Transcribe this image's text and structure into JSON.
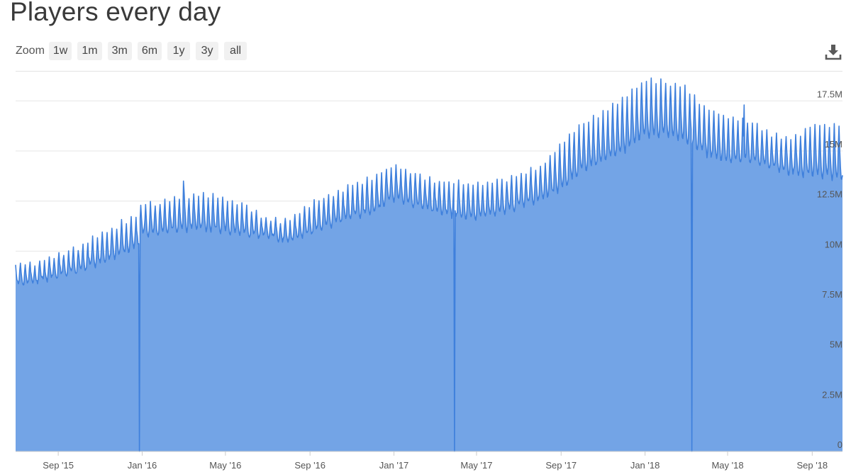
{
  "header": {
    "title": "Players every day"
  },
  "zoom": {
    "label": "Zoom",
    "buttons": [
      "1w",
      "1m",
      "3m",
      "6m",
      "1y",
      "3y",
      "all"
    ]
  },
  "icons": {
    "download": "download-icon"
  },
  "colors": {
    "area": "#73a4e6",
    "line": "#3f80dc",
    "grid": "#e6e6e6"
  },
  "chart_data": {
    "type": "area",
    "title": "Players every day",
    "x_range": [
      "2015-07-01",
      "2018-10-15"
    ],
    "ylim": [
      0,
      19000000
    ],
    "y_ticks": [
      {
        "value": 0,
        "label": "0"
      },
      {
        "value": 2500000,
        "label": "2.5M"
      },
      {
        "value": 5000000,
        "label": "5M"
      },
      {
        "value": 7500000,
        "label": "7.5M"
      },
      {
        "value": 10000000,
        "label": "10M"
      },
      {
        "value": 12500000,
        "label": "12.5M"
      },
      {
        "value": 15000000,
        "label": "15M"
      },
      {
        "value": 17500000,
        "label": "17.5M"
      }
    ],
    "x_ticks": [
      {
        "date": "2015-09-01",
        "label": "Sep '15"
      },
      {
        "date": "2016-01-01",
        "label": "Jan '16"
      },
      {
        "date": "2016-05-01",
        "label": "May '16"
      },
      {
        "date": "2016-09-01",
        "label": "Sep '16"
      },
      {
        "date": "2017-01-01",
        "label": "Jan '17"
      },
      {
        "date": "2017-05-01",
        "label": "May '17"
      },
      {
        "date": "2017-09-01",
        "label": "Sep '17"
      },
      {
        "date": "2018-01-01",
        "label": "Jan '18"
      },
      {
        "date": "2018-05-01",
        "label": "May '18"
      },
      {
        "date": "2018-09-01",
        "label": "Sep '18"
      }
    ],
    "weekly_pattern": "weekday-low / weekend-high oscillation",
    "series": [
      {
        "low": [
          [
            "2015-07-01",
            8300000
          ],
          [
            "2015-08-01",
            8500000
          ],
          [
            "2015-09-01",
            8700000
          ],
          [
            "2015-10-01",
            9000000
          ],
          [
            "2015-11-01",
            9400000
          ],
          [
            "2015-12-01",
            9900000
          ],
          [
            "2015-12-20",
            10100000
          ],
          [
            "2016-01-01",
            10800000
          ],
          [
            "2016-02-01",
            10900000
          ],
          [
            "2016-03-01",
            11100000
          ],
          [
            "2016-04-01",
            11100000
          ],
          [
            "2016-05-01",
            11000000
          ],
          [
            "2016-06-01",
            10800000
          ],
          [
            "2016-07-01",
            10700000
          ],
          [
            "2016-08-01",
            10500000
          ],
          [
            "2016-09-01",
            10900000
          ],
          [
            "2016-10-01",
            11300000
          ],
          [
            "2016-11-01",
            11700000
          ],
          [
            "2016-12-01",
            11900000
          ],
          [
            "2017-01-01",
            12600000
          ],
          [
            "2017-02-01",
            12300000
          ],
          [
            "2017-03-01",
            12000000
          ],
          [
            "2017-04-01",
            11700000
          ],
          [
            "2017-05-01",
            11700000
          ],
          [
            "2017-06-01",
            11900000
          ],
          [
            "2017-07-01",
            12200000
          ],
          [
            "2017-08-01",
            12600000
          ],
          [
            "2017-09-01",
            13100000
          ],
          [
            "2017-10-01",
            14000000
          ],
          [
            "2017-11-01",
            14500000
          ],
          [
            "2017-12-01",
            15000000
          ],
          [
            "2018-01-01",
            15800000
          ],
          [
            "2018-02-01",
            15800000
          ],
          [
            "2018-03-01",
            15500000
          ],
          [
            "2018-04-01",
            14800000
          ],
          [
            "2018-05-01",
            14500000
          ],
          [
            "2018-06-01",
            14500000
          ],
          [
            "2018-07-01",
            14200000
          ],
          [
            "2018-08-01",
            13900000
          ],
          [
            "2018-09-01",
            13800000
          ],
          [
            "2018-10-15",
            13600000
          ]
        ],
        "high": [
          [
            "2015-07-01",
            9400000
          ],
          [
            "2015-08-01",
            9400000
          ],
          [
            "2015-09-01",
            9800000
          ],
          [
            "2015-10-01",
            10200000
          ],
          [
            "2015-11-01",
            10800000
          ],
          [
            "2015-12-01",
            11400000
          ],
          [
            "2015-12-20",
            11600000
          ],
          [
            "2016-01-01",
            12300000
          ],
          [
            "2016-02-01",
            12500000
          ],
          [
            "2016-03-01",
            12800000
          ],
          [
            "2016-04-01",
            12800000
          ],
          [
            "2016-05-01",
            12600000
          ],
          [
            "2016-06-01",
            12200000
          ],
          [
            "2016-07-01",
            11600000
          ],
          [
            "2016-08-01",
            11500000
          ],
          [
            "2016-09-01",
            12300000
          ],
          [
            "2016-10-01",
            12800000
          ],
          [
            "2016-11-01",
            13300000
          ],
          [
            "2016-12-01",
            13700000
          ],
          [
            "2017-01-01",
            14300000
          ],
          [
            "2017-02-01",
            13900000
          ],
          [
            "2017-03-01",
            13500000
          ],
          [
            "2017-04-01",
            13400000
          ],
          [
            "2017-05-01",
            13300000
          ],
          [
            "2017-06-01",
            13500000
          ],
          [
            "2017-07-01",
            13800000
          ],
          [
            "2017-08-01",
            14200000
          ],
          [
            "2017-09-01",
            15300000
          ],
          [
            "2017-10-01",
            16300000
          ],
          [
            "2017-11-01",
            16900000
          ],
          [
            "2017-12-01",
            17700000
          ],
          [
            "2018-01-01",
            18500000
          ],
          [
            "2018-02-01",
            18500000
          ],
          [
            "2018-03-01",
            18100000
          ],
          [
            "2018-04-01",
            17100000
          ],
          [
            "2018-05-01",
            16700000
          ],
          [
            "2018-06-01",
            16500000
          ],
          [
            "2018-07-01",
            15800000
          ],
          [
            "2018-08-01",
            15600000
          ],
          [
            "2018-09-01",
            16300000
          ],
          [
            "2018-10-15",
            16300000
          ]
        ],
        "spikes": [
          [
            "2016-03-01",
            13500000
          ],
          [
            "2018-05-25",
            17300000
          ]
        ],
        "gaps": [
          [
            "2015-12-28",
            0
          ],
          [
            "2017-03-30",
            0
          ],
          [
            "2018-03-10",
            0
          ]
        ]
      }
    ]
  }
}
